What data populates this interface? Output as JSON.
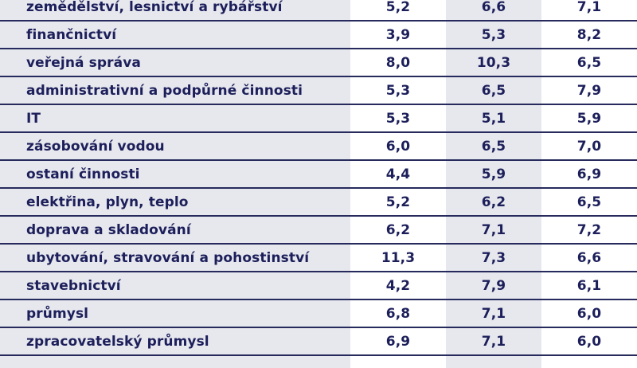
{
  "table": {
    "columns": [
      "",
      "",
      "",
      ""
    ],
    "rows": [
      {
        "label": "zemědělství, lesnictví a rybářství",
        "values": [
          "5,2",
          "6,6",
          "7,1"
        ]
      },
      {
        "label": "finančnictví",
        "values": [
          "3,9",
          "5,3",
          "8,2"
        ]
      },
      {
        "label": "veřejná správa",
        "values": [
          "8,0",
          "10,3",
          "6,5"
        ]
      },
      {
        "label": "administrativní a podpůrné činnosti",
        "values": [
          "5,3",
          "6,5",
          "7,9"
        ]
      },
      {
        "label": "IT",
        "values": [
          "5,3",
          "5,1",
          "5,9"
        ]
      },
      {
        "label": "zásobování vodou",
        "values": [
          "6,0",
          "6,5",
          "7,0"
        ]
      },
      {
        "label": "ostaní činnosti",
        "values": [
          "4,4",
          "5,9",
          "6,9"
        ]
      },
      {
        "label": "elektřina, plyn, teplo",
        "values": [
          "5,2",
          "6,2",
          "6,5"
        ]
      },
      {
        "label": "doprava a skladování",
        "values": [
          "6,2",
          "7,1",
          "7,2"
        ]
      },
      {
        "label": "ubytování, stravování a pohostinství",
        "values": [
          "11,3",
          "7,3",
          "6,6"
        ]
      },
      {
        "label": "stavebnictví",
        "values": [
          "4,2",
          "7,9",
          "6,1"
        ]
      },
      {
        "label": "průmysl",
        "values": [
          "6,8",
          "7,1",
          "6,0"
        ]
      },
      {
        "label": "zpracovatelský průmysl",
        "values": [
          "6,9",
          "7,1",
          "6,0"
        ]
      }
    ]
  },
  "colors": {
    "text": "#1c1f5a",
    "rule": "#262a5c",
    "band_grey": "#e7e7ee",
    "band_white": "#ffffff"
  }
}
